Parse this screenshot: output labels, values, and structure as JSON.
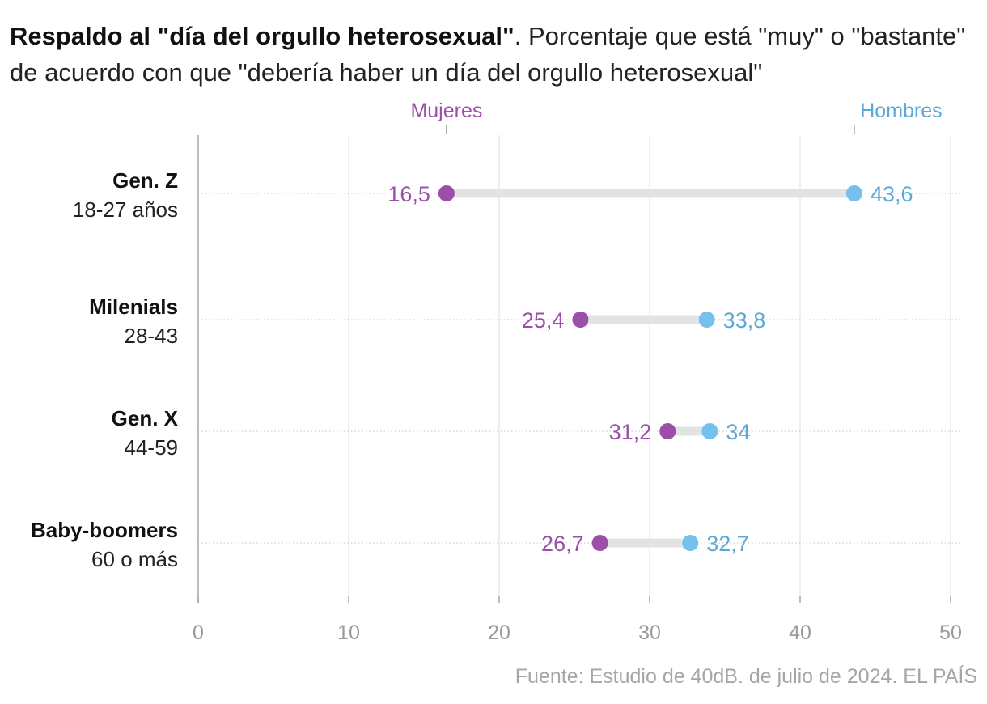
{
  "title": {
    "bold": "Respaldo al \"día del orgullo heterosexual\"",
    "regular": ". Porcentaje que está \"muy\" o \"bastante\" de acuerdo con que \"debería haber un día del orgullo heterosexual\""
  },
  "source": "Fuente: Estudio de 40dB. de julio de 2024. EL PAÍS",
  "colors": {
    "mujeres": "#9b4fa8",
    "hombres": "#74c1ee",
    "connector": "#e3e3e3",
    "grid": "#dcdcdc",
    "axis_text": "#9a9a9a"
  },
  "chart_data": {
    "type": "dumbbell",
    "xlim": [
      0,
      50
    ],
    "x_ticks": [
      0,
      10,
      20,
      30,
      40,
      50
    ],
    "grid": true,
    "series": [
      {
        "name": "Mujeres",
        "values": [
          16.5,
          25.4,
          31.2,
          26.7
        ]
      },
      {
        "name": "Hombres",
        "values": [
          43.6,
          33.8,
          34,
          32.7
        ]
      }
    ],
    "categories": [
      {
        "name": "Gen. Z",
        "sub": "18-27 años"
      },
      {
        "name": "Milenials",
        "sub": "28-43"
      },
      {
        "name": "Gen. X",
        "sub": "44-59"
      },
      {
        "name": "Baby-boomers",
        "sub": "60 o más"
      }
    ],
    "value_labels": {
      "Mujeres": [
        "16,5",
        "25,4",
        "31,2",
        "26,7"
      ],
      "Hombres": [
        "43,6",
        "33,8",
        "34",
        "32,7"
      ]
    }
  }
}
